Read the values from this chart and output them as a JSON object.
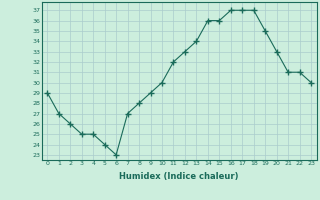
{
  "x": [
    0,
    1,
    2,
    3,
    4,
    5,
    6,
    7,
    8,
    9,
    10,
    11,
    12,
    13,
    14,
    15,
    16,
    17,
    18,
    19,
    20,
    21,
    22,
    23
  ],
  "y": [
    29,
    27,
    26,
    25,
    25,
    24,
    23,
    27,
    28,
    29,
    30,
    32,
    33,
    34,
    36,
    36,
    37,
    37,
    37,
    35,
    33,
    31,
    31,
    30
  ],
  "line_color": "#1a6b5a",
  "marker_color": "#1a6b5a",
  "bg_color": "#cceedd",
  "grid_color": "#aacccc",
  "xlabel": "Humidex (Indice chaleur)",
  "ylabel_ticks": [
    23,
    24,
    25,
    26,
    27,
    28,
    29,
    30,
    31,
    32,
    33,
    34,
    35,
    36,
    37
  ],
  "ylim": [
    22.5,
    37.8
  ],
  "xlim": [
    -0.5,
    23.5
  ],
  "title": ""
}
